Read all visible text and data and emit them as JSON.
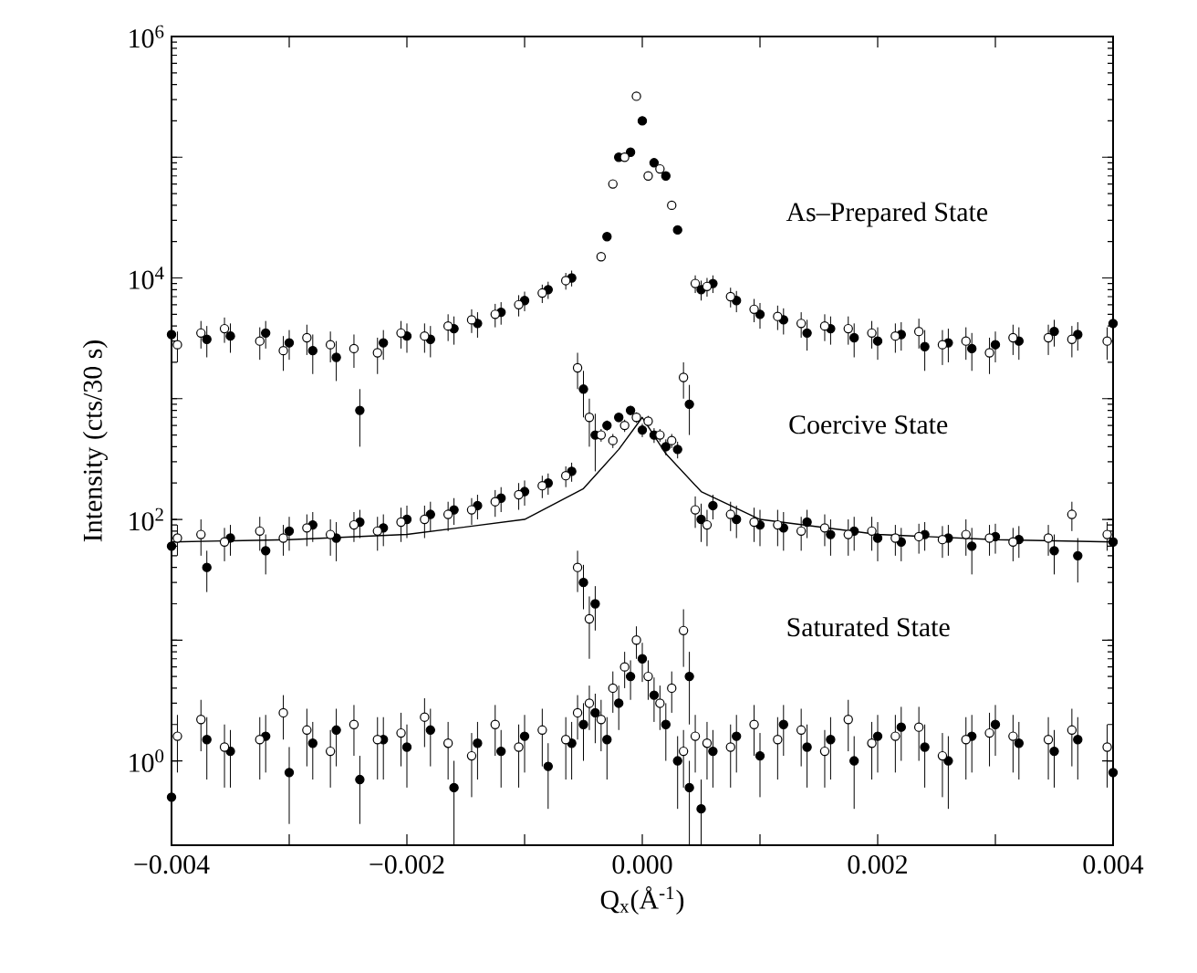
{
  "chart_data": {
    "type": "scatter",
    "xlabel": "Q$_{x}$(Å$^{-1}$)",
    "ylabel": "Intensity (cts/30 s)",
    "log": "y",
    "marker": "circle",
    "grid": false,
    "xlim": [
      -0.004,
      0.004
    ],
    "ylim": [
      0.2,
      1000000
    ],
    "xticks": [
      {
        "value": -0.004,
        "label": "−0.004"
      },
      {
        "value": -0.003,
        "label": null
      },
      {
        "value": -0.002,
        "label": "−0.002"
      },
      {
        "value": -0.001,
        "label": null
      },
      {
        "value": 0,
        "label": "0.000"
      },
      {
        "value": 0.001,
        "label": null
      },
      {
        "value": 0.002,
        "label": "0.002"
      },
      {
        "value": 0.003,
        "label": null
      },
      {
        "value": 0.004,
        "label": "0.004"
      }
    ],
    "yticks": [
      {
        "value": 1,
        "label": "10$^{0}$"
      },
      {
        "value": 10,
        "label": null
      },
      {
        "value": 100,
        "label": "10$^{2}$"
      },
      {
        "value": 1000,
        "label": null
      },
      {
        "value": 10000,
        "label": "10$^{4}$"
      },
      {
        "value": 100000,
        "label": null
      },
      {
        "value": 1000000,
        "label": "10$^{6}$"
      }
    ],
    "x": [
      -0.004,
      -0.0037,
      -0.0035,
      -0.0032,
      -0.003,
      -0.0028,
      -0.0026,
      -0.0024,
      -0.0022,
      -0.002,
      -0.0018,
      -0.0016,
      -0.0014,
      -0.0012,
      -0.001,
      -0.0008,
      -0.0006,
      -0.0005,
      -0.0004,
      -0.0003,
      -0.0002,
      -0.0001,
      0,
      0.0001,
      0.0002,
      0.0003,
      0.0004,
      0.0005,
      0.0006,
      0.0008,
      0.001,
      0.0012,
      0.0014,
      0.0016,
      0.0018,
      0.002,
      0.0022,
      0.0024,
      0.0026,
      0.0028,
      0.003,
      0.0032,
      0.0035,
      0.0037,
      0.004
    ],
    "series": [
      {
        "color": "#000000",
        "values": [
          3400,
          3100,
          3300,
          3500,
          2900,
          2500,
          2200,
          800,
          2900,
          3300,
          3100,
          3800,
          4200,
          5200,
          6500,
          8000,
          10000,
          1200,
          500,
          22000,
          100000,
          110000,
          200000,
          90000,
          70000,
          25000,
          900,
          8000,
          9000,
          6500,
          5000,
          4500,
          3500,
          3800,
          3200,
          3000,
          3400,
          2700,
          2900,
          2600,
          2800,
          3000,
          3600,
          3400,
          4200
        ],
        "errors": [
          800,
          900,
          900,
          900,
          800,
          900,
          800,
          400,
          800,
          900,
          900,
          1000,
          1000,
          1100,
          1200,
          1300,
          1500,
          500,
          250,
          null,
          null,
          null,
          null,
          null,
          null,
          null,
          400,
          1500,
          1500,
          1300,
          1200,
          1100,
          1000,
          1000,
          1000,
          900,
          900,
          1000,
          900,
          900,
          800,
          900,
          900,
          900,
          900
        ]
      },
      {
        "color": "#ffffff",
        "x": [
          -0.00395,
          -0.00375,
          -0.00355,
          -0.00325,
          -0.00305,
          -0.00285,
          -0.00265,
          -0.00245,
          -0.00225,
          -0.00205,
          -0.00185,
          -0.00165,
          -0.00145,
          -0.00125,
          -0.00105,
          -0.00085,
          -0.00065,
          -0.00055,
          -0.00045,
          -0.00035,
          -0.00025,
          -0.00015,
          -5e-05,
          5e-05,
          0.00015,
          0.00025,
          0.00035,
          0.00045,
          0.00055,
          0.00075,
          0.00095,
          0.00115,
          0.00135,
          0.00155,
          0.00175,
          0.00195,
          0.00215,
          0.00235,
          0.00255,
          0.00275,
          0.00295,
          0.00315,
          0.00345,
          0.00365,
          0.00395
        ],
        "values": [
          2800,
          3500,
          3800,
          3000,
          2500,
          3200,
          2800,
          2600,
          2400,
          3500,
          3300,
          4000,
          4500,
          5000,
          6000,
          7500,
          9500,
          1800,
          700,
          15000,
          60000,
          100000,
          320000,
          70000,
          80000,
          40000,
          1500,
          9000,
          8500,
          7000,
          5500,
          4800,
          4200,
          4000,
          3800,
          3500,
          3300,
          3600,
          2800,
          3000,
          2400,
          3200,
          3200,
          3100,
          3000
        ],
        "errors": [
          800,
          900,
          900,
          900,
          800,
          900,
          800,
          800,
          800,
          900,
          900,
          1000,
          1000,
          1100,
          1200,
          1300,
          1500,
          600,
          300,
          null,
          null,
          null,
          null,
          null,
          null,
          null,
          500,
          1500,
          1500,
          1300,
          1200,
          1100,
          1000,
          1000,
          1000,
          900,
          900,
          1000,
          900,
          900,
          800,
          900,
          900,
          900,
          900
        ]
      },
      {
        "color": "#000000",
        "values": [
          60,
          40,
          70,
          55,
          80,
          90,
          70,
          95,
          85,
          100,
          110,
          120,
          130,
          150,
          170,
          200,
          250,
          30,
          20,
          600,
          700,
          800,
          550,
          500,
          400,
          380,
          5,
          100,
          130,
          100,
          90,
          85,
          95,
          75,
          80,
          70,
          65,
          75,
          70,
          60,
          72,
          68,
          55,
          50,
          65
        ],
        "errors": [
          20,
          15,
          20,
          20,
          25,
          25,
          25,
          25,
          25,
          30,
          30,
          30,
          30,
          35,
          40,
          40,
          45,
          12,
          8,
          60,
          60,
          70,
          70,
          70,
          60,
          60,
          3,
          35,
          30,
          30,
          30,
          30,
          25,
          25,
          25,
          25,
          20,
          20,
          20,
          25,
          20,
          20,
          20,
          20,
          20
        ]
      },
      {
        "color": "#ffffff",
        "x": [
          -0.00395,
          -0.00375,
          -0.00355,
          -0.00325,
          -0.00305,
          -0.00285,
          -0.00265,
          -0.00245,
          -0.00225,
          -0.00205,
          -0.00185,
          -0.00165,
          -0.00145,
          -0.00125,
          -0.00105,
          -0.00085,
          -0.00065,
          -0.00055,
          -0.00045,
          -0.00035,
          -0.00025,
          -0.00015,
          -5e-05,
          5e-05,
          0.00015,
          0.00025,
          0.00035,
          0.00045,
          0.00055,
          0.00075,
          0.00095,
          0.00115,
          0.00135,
          0.00155,
          0.00175,
          0.00195,
          0.00215,
          0.00235,
          0.00255,
          0.00275,
          0.00295,
          0.00315,
          0.00345,
          0.00365,
          0.00395
        ],
        "values": [
          70,
          75,
          65,
          80,
          70,
          85,
          75,
          90,
          80,
          95,
          100,
          110,
          120,
          140,
          160,
          190,
          230,
          40,
          15,
          500,
          450,
          600,
          700,
          650,
          500,
          450,
          12,
          120,
          90,
          110,
          95,
          90,
          80,
          85,
          75,
          80,
          70,
          72,
          68,
          75,
          70,
          65,
          70,
          110,
          75
        ],
        "errors": [
          20,
          25,
          20,
          25,
          20,
          25,
          25,
          25,
          25,
          30,
          30,
          30,
          30,
          35,
          40,
          40,
          45,
          15,
          8,
          60,
          60,
          70,
          70,
          70,
          60,
          60,
          6,
          35,
          30,
          30,
          30,
          30,
          25,
          25,
          25,
          25,
          20,
          20,
          20,
          25,
          20,
          20,
          20,
          30,
          20
        ]
      },
      {
        "color": "#000000",
        "values": [
          0.5,
          1.5,
          1.2,
          1.6,
          0.8,
          1.4,
          1.8,
          0.7,
          1.5,
          1.3,
          1.8,
          0.6,
          1.4,
          1.2,
          1.6,
          0.9,
          1.4,
          2.0,
          2.5,
          1.5,
          3.0,
          5.0,
          7.0,
          3.5,
          2.0,
          1.0,
          0.6,
          0.4,
          1.2,
          1.6,
          1.1,
          2.0,
          1.3,
          1.5,
          1.0,
          1.6,
          1.9,
          1.3,
          1.0,
          1.6,
          2.0,
          1.4,
          1.2,
          1.5,
          0.8
        ],
        "errors": [
          0.3,
          0.8,
          0.6,
          0.8,
          0.5,
          0.7,
          0.9,
          0.4,
          0.8,
          0.7,
          0.9,
          0.4,
          0.7,
          0.6,
          0.8,
          0.5,
          0.7,
          1.0,
          1.1,
          0.8,
          1.2,
          1.8,
          2.5,
          1.4,
          1.0,
          0.6,
          0.4,
          0.3,
          0.6,
          0.8,
          0.6,
          0.9,
          0.7,
          0.8,
          0.6,
          0.8,
          0.9,
          0.7,
          0.6,
          0.8,
          0.9,
          0.7,
          0.6,
          0.8,
          0.5
        ]
      },
      {
        "color": "#ffffff",
        "x": [
          -0.00395,
          -0.00375,
          -0.00355,
          -0.00325,
          -0.00305,
          -0.00285,
          -0.00265,
          -0.00245,
          -0.00225,
          -0.00205,
          -0.00185,
          -0.00165,
          -0.00145,
          -0.00125,
          -0.00105,
          -0.00085,
          -0.00065,
          -0.00055,
          -0.00045,
          -0.00035,
          -0.00025,
          -0.00015,
          -5e-05,
          5e-05,
          0.00015,
          0.00025,
          0.00035,
          0.00045,
          0.00055,
          0.00075,
          0.00095,
          0.00115,
          0.00135,
          0.00155,
          0.00175,
          0.00195,
          0.00215,
          0.00235,
          0.00255,
          0.00275,
          0.00295,
          0.00315,
          0.00345,
          0.00365,
          0.00395
        ],
        "values": [
          1.6,
          2.2,
          1.3,
          1.5,
          2.5,
          1.8,
          1.2,
          2.0,
          1.5,
          1.7,
          2.3,
          1.4,
          1.1,
          2.0,
          1.3,
          1.8,
          1.5,
          2.5,
          3.0,
          2.2,
          4.0,
          6.0,
          10,
          5.0,
          3.0,
          4.0,
          1.2,
          1.6,
          1.4,
          1.3,
          2.0,
          1.5,
          1.8,
          1.2,
          2.2,
          1.4,
          1.6,
          1.9,
          1.1,
          1.5,
          1.7,
          1.6,
          1.5,
          1.8,
          1.3
        ],
        "errors": [
          0.8,
          1.0,
          0.7,
          0.8,
          1.0,
          0.9,
          0.6,
          0.9,
          0.8,
          0.8,
          1.0,
          0.7,
          0.6,
          0.9,
          0.7,
          0.9,
          0.8,
          1.0,
          1.2,
          1.0,
          1.5,
          2.0,
          3.0,
          1.8,
          1.2,
          1.5,
          0.6,
          0.8,
          0.7,
          0.7,
          0.9,
          0.8,
          0.9,
          0.6,
          1.0,
          0.7,
          0.8,
          0.9,
          0.6,
          0.8,
          0.8,
          0.8,
          0.8,
          0.9,
          0.7
        ]
      },
      {
        "type": "line",
        "marker": "none",
        "line_style": "solid",
        "color": "#000000",
        "x": [
          -0.004,
          -0.003,
          -0.002,
          -0.001,
          -0.0005,
          -0.0002,
          0,
          0.0002,
          0.0005,
          0.001,
          0.002,
          0.003,
          0.004
        ],
        "values": [
          65,
          68,
          75,
          100,
          180,
          380,
          700,
          350,
          170,
          100,
          75,
          68,
          65
        ]
      }
    ],
    "annotations": [
      "As–Prepared State",
      "Coercive State",
      "Saturated State"
    ]
  }
}
